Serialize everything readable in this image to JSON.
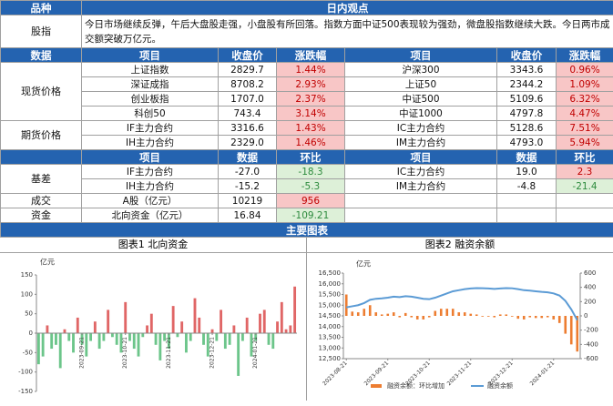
{
  "header": {
    "col1": "品种",
    "col2": "日内观点"
  },
  "commentary": {
    "label": "股指",
    "text": "今日市场继续反弹，午后大盘股走强，小盘股有所回落。指数方面中证500表现较为强劲，微盘股指数继续大跌。今日两市成交额突破万亿元。"
  },
  "spot": {
    "header": [
      "数据",
      "项目",
      "收盘价",
      "涨跌幅",
      "项目",
      "收盘价",
      "涨跌幅"
    ],
    "label": "现货价格",
    "rows": [
      [
        "上证指数",
        "2829.7",
        "1.44%",
        "沪深300",
        "3343.6",
        "0.96%"
      ],
      [
        "深证成指",
        "8708.2",
        "2.93%",
        "上证50",
        "2344.2",
        "1.09%"
      ],
      [
        "创业板指",
        "1707.0",
        "2.37%",
        "中证500",
        "5109.6",
        "6.32%"
      ],
      [
        "科创50",
        "743.4",
        "3.14%",
        "中证1000",
        "4797.8",
        "4.47%"
      ]
    ]
  },
  "futures": {
    "label": "期货价格",
    "rows": [
      [
        "IF主力合约",
        "3316.6",
        "1.43%",
        "IC主力合约",
        "5128.6",
        "7.51%"
      ],
      [
        "IH主力合约",
        "2329.0",
        "1.46%",
        "IM主力合约",
        "4793.0",
        "5.94%"
      ]
    ]
  },
  "stats": {
    "header": [
      "项目",
      "数据",
      "环比",
      "项目",
      "数据",
      "环比"
    ],
    "basis": {
      "label": "基差",
      "rows": [
        [
          "IF主力合约",
          "-27.0",
          "-18.3",
          "IC主力合约",
          "19.0",
          "2.3"
        ],
        [
          "IH主力合约",
          "-15.2",
          "-5.3",
          "IM主力合约",
          "-4.8",
          "-21.4"
        ]
      ]
    },
    "volume": {
      "label": "成交",
      "row": [
        "A股（亿元）",
        "10219",
        "956"
      ]
    },
    "funds": {
      "label": "资金",
      "row": [
        "北向资金（亿元）",
        "16.84",
        "-109.21"
      ]
    }
  },
  "charts_header": "主要图表",
  "chart_data": [
    {
      "type": "bar",
      "title": "图表1 北向资金",
      "y_label": "亿元",
      "colors": {
        "positive": "#e06666",
        "negative": "#6cc58a"
      },
      "values": [
        -80,
        -60,
        20,
        -40,
        -30,
        -90,
        10,
        -20,
        -50,
        40,
        -30,
        -60,
        -20,
        30,
        -40,
        -20,
        60,
        -10,
        -30,
        -50,
        80,
        -20,
        -40,
        -60,
        -10,
        20,
        50,
        -30,
        -70,
        -20,
        -40,
        70,
        -10,
        30,
        -50,
        -20,
        90,
        40,
        -30,
        -60,
        10,
        -20,
        60,
        -40,
        -30,
        20,
        -110,
        -20,
        40,
        -60,
        -20,
        50,
        60,
        -30,
        -40,
        30,
        80,
        10,
        20,
        120
      ],
      "ylim": [
        -150,
        150
      ],
      "yticks": [
        -150,
        -100,
        -50,
        0,
        50,
        100,
        150
      ],
      "xticks": [
        {
          "value": 10,
          "label": "2023-09-21"
        },
        {
          "value": 20,
          "label": "2023-10-21"
        },
        {
          "value": 30,
          "label": "2023-11-21"
        },
        {
          "value": 40,
          "label": "2023-12-21"
        },
        {
          "value": 50,
          "label": "2024-01-21"
        }
      ]
    },
    {
      "type": "combo",
      "title": "图表2 融资余额",
      "y_label": "亿元",
      "series": [
        {
          "name": "融资余额：环比增加",
          "type": "bar",
          "axis": "y2",
          "color": "#ed7d31",
          "values": [
            300,
            60,
            50,
            100,
            150,
            50,
            20,
            30,
            50,
            -20,
            40,
            -20,
            -50,
            -50,
            -20,
            70,
            100,
            100,
            100,
            50,
            50,
            30,
            20,
            -10,
            -10,
            -20,
            20,
            20,
            -10,
            -40,
            -50,
            -20,
            -30,
            -30,
            -20,
            -50,
            -100,
            -250,
            -400,
            -500
          ]
        },
        {
          "name": "融资余额",
          "type": "line",
          "color": "#5b9bd5",
          "values": [
            14900,
            14950,
            15000,
            15100,
            15250,
            15300,
            15320,
            15350,
            15400,
            15380,
            15420,
            15400,
            15350,
            15300,
            15280,
            15350,
            15450,
            15550,
            15650,
            15700,
            15750,
            15780,
            15800,
            15790,
            15780,
            15760,
            15780,
            15800,
            15790,
            15750,
            15700,
            15680,
            15650,
            15620,
            15600,
            15550,
            15450,
            15200,
            14800,
            14300
          ]
        }
      ],
      "ylim": [
        12500,
        16500
      ],
      "yticks": [
        {
          "value": 12500,
          "label": "12,500"
        },
        {
          "value": 13000,
          "label": "13,000"
        },
        {
          "value": 13500,
          "label": "13,500"
        },
        {
          "value": 14000,
          "label": "14,000"
        },
        {
          "value": 14500,
          "label": "14,500"
        },
        {
          "value": 15000,
          "label": "15,000"
        },
        {
          "value": 15500,
          "label": "15,500"
        },
        {
          "value": 16000,
          "label": "16,000"
        },
        {
          "value": 16500,
          "label": "16,500"
        }
      ],
      "y2lim": [
        -600,
        600
      ],
      "y2ticks": [
        -600,
        -400,
        -200,
        0,
        200,
        400,
        600
      ],
      "xticks": [
        {
          "value": 0,
          "label": "2023-08-21"
        },
        {
          "value": 7,
          "label": "2023-09-21"
        },
        {
          "value": 14,
          "label": "2023-10-21"
        },
        {
          "value": 21,
          "label": "2023-11-21"
        },
        {
          "value": 28,
          "label": "2023-12-21"
        },
        {
          "value": 35,
          "label": "2024-01-21"
        }
      ]
    }
  ]
}
